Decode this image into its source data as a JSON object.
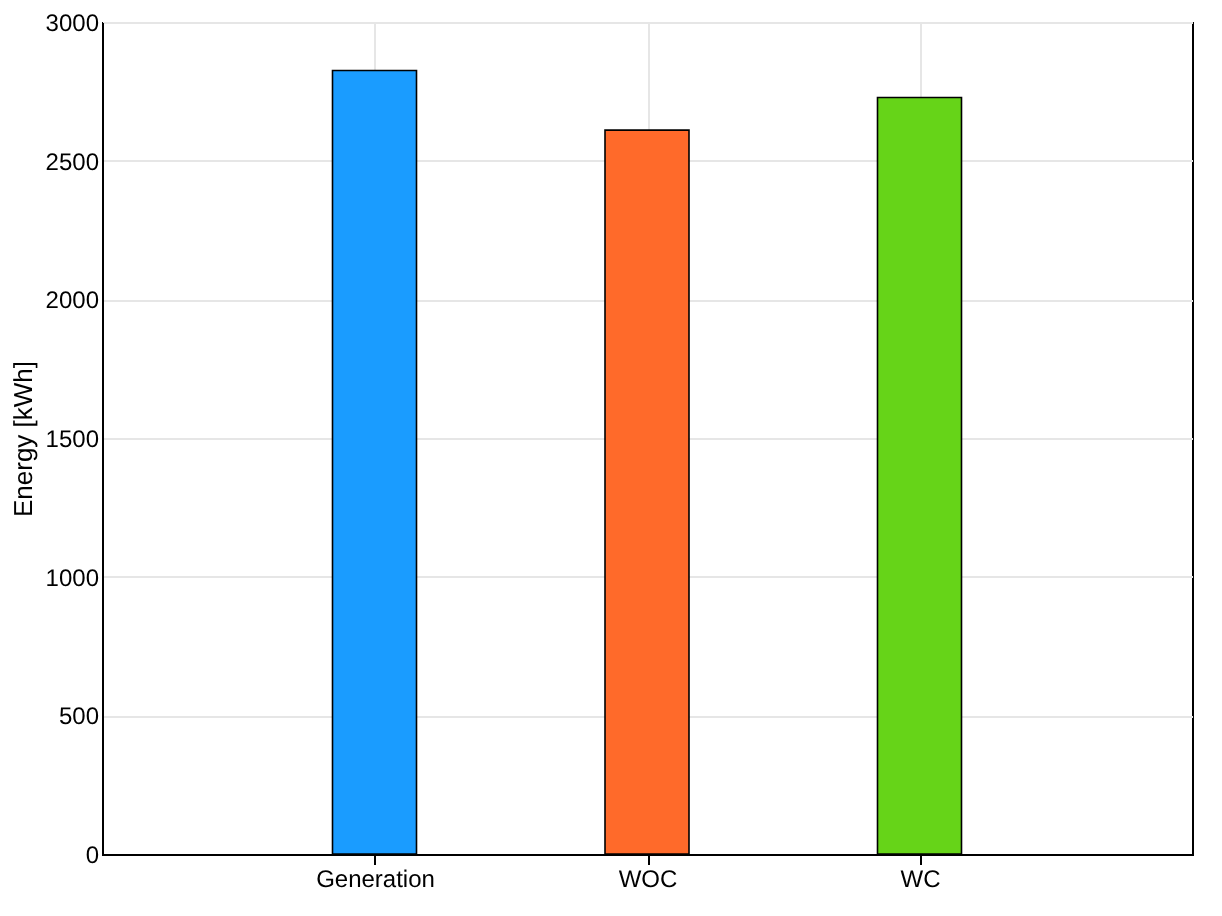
{
  "chart_data": {
    "type": "bar",
    "ylabel": "Energy [kWh]",
    "categories": [
      "Generation",
      "WOC",
      "WC"
    ],
    "values": [
      2825,
      2610,
      2728
    ],
    "colors": [
      "#1a9cff",
      "#ff6a2a",
      "#66d418"
    ],
    "ylim": [
      0,
      3000
    ],
    "yticks": [
      0,
      500,
      1000,
      1500,
      2000,
      2500,
      3000
    ],
    "grid": true
  }
}
